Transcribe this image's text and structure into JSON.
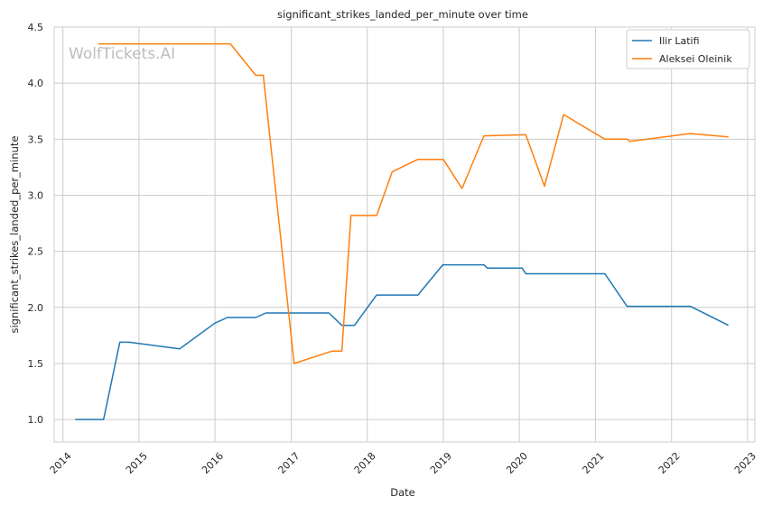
{
  "chart_data": {
    "type": "line",
    "title": "significant_strikes_landed_per_minute over time",
    "xlabel": "Date",
    "ylabel": "significant_strikes_landed_per_minute",
    "watermark": "WolfTickets.AI",
    "x_ticks": [
      "2014",
      "2015",
      "2016",
      "2017",
      "2018",
      "2019",
      "2020",
      "2021",
      "2022",
      "2023"
    ],
    "y_ticks": [
      "1.0",
      "1.5",
      "2.0",
      "2.5",
      "3.0",
      "3.5",
      "4.0",
      "4.5"
    ],
    "xlim": [
      "2013-11-20",
      "2023-02-05"
    ],
    "ylim": [
      0.8,
      4.5
    ],
    "grid": true,
    "legend_position": "top-right",
    "series": [
      {
        "name": "Ilir Latifi",
        "color": "#1f77b4",
        "points": [
          [
            "2014-03-01",
            1.0
          ],
          [
            "2014-07-15",
            1.0
          ],
          [
            "2014-10-01",
            1.69
          ],
          [
            "2014-11-15",
            1.69
          ],
          [
            "2015-07-15",
            1.63
          ],
          [
            "2016-01-01",
            1.86
          ],
          [
            "2016-03-01",
            1.91
          ],
          [
            "2016-07-15",
            1.91
          ],
          [
            "2016-09-01",
            1.95
          ],
          [
            "2017-07-01",
            1.95
          ],
          [
            "2017-09-01",
            1.84
          ],
          [
            "2017-11-01",
            1.84
          ],
          [
            "2018-02-15",
            2.11
          ],
          [
            "2018-09-01",
            2.11
          ],
          [
            "2018-12-30",
            2.38
          ],
          [
            "2019-07-15",
            2.38
          ],
          [
            "2019-08-01",
            2.35
          ],
          [
            "2020-01-15",
            2.35
          ],
          [
            "2020-02-01",
            2.3
          ],
          [
            "2021-02-15",
            2.3
          ],
          [
            "2021-06-01",
            2.01
          ],
          [
            "2022-04-01",
            2.01
          ],
          [
            "2022-10-01",
            1.84
          ]
        ]
      },
      {
        "name": "Aleksei Oleinik",
        "color": "#ff7f0e",
        "points": [
          [
            "2014-06-20",
            4.35
          ],
          [
            "2016-03-15",
            4.35
          ],
          [
            "2016-07-15",
            4.07
          ],
          [
            "2016-08-20",
            4.07
          ],
          [
            "2017-01-15",
            1.5
          ],
          [
            "2017-07-15",
            1.61
          ],
          [
            "2017-09-01",
            1.61
          ],
          [
            "2017-10-15",
            2.82
          ],
          [
            "2018-02-15",
            2.82
          ],
          [
            "2018-05-01",
            3.21
          ],
          [
            "2018-09-01",
            3.32
          ],
          [
            "2019-01-01",
            3.32
          ],
          [
            "2019-04-01",
            3.06
          ],
          [
            "2019-07-15",
            3.53
          ],
          [
            "2020-02-01",
            3.54
          ],
          [
            "2020-05-01",
            3.08
          ],
          [
            "2020-08-01",
            3.72
          ],
          [
            "2021-02-15",
            3.5
          ],
          [
            "2021-06-01",
            3.5
          ],
          [
            "2021-06-15",
            3.48
          ],
          [
            "2022-04-01",
            3.55
          ],
          [
            "2022-10-01",
            3.52
          ]
        ]
      }
    ]
  }
}
